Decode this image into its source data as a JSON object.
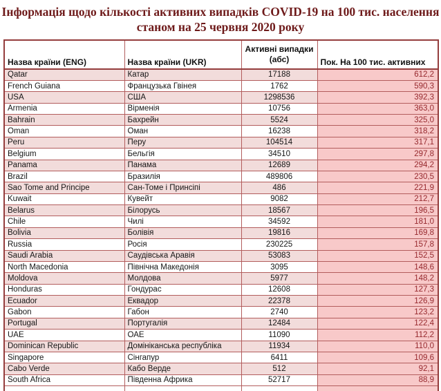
{
  "title": {
    "line1": "Інформація щодо кількості активних випадків COVID-19 на 100 тис.  населення",
    "line2": "станом на 25 червня 2020 року"
  },
  "colors": {
    "title_text": "#6e1a1a",
    "border": "#b25c5c",
    "outer_border": "#943c3c",
    "shaded_row_bg": "#f2dcdb",
    "rate_column_bg": "#f8c9c9",
    "rate_text": "#96282d"
  },
  "table": {
    "headers": [
      "Назва країни (ENG)",
      "Назва країни (UKR)",
      "Активні випадки\n(абс)",
      "Пок. На 100 тис. активних"
    ],
    "rows": [
      [
        "Qatar",
        "Катар",
        "17188",
        "612,2"
      ],
      [
        "French Guiana",
        "Французька Гвінея",
        "1762",
        "590,3"
      ],
      [
        "USA",
        "США",
        "1298536",
        "392,3"
      ],
      [
        "Armenia",
        "Вірменія",
        "10756",
        "363,0"
      ],
      [
        "Bahrain",
        "Бахрейн",
        "5524",
        "325,0"
      ],
      [
        "Oman",
        "Оман",
        "16238",
        "318,2"
      ],
      [
        "Peru",
        "Перу",
        "104514",
        "317,1"
      ],
      [
        "Belgium",
        "Бельгія",
        "34510",
        "297,8"
      ],
      [
        "Panama",
        "Панама",
        "12689",
        "294,2"
      ],
      [
        "Brazil",
        "Бразилія",
        "489806",
        "230,5"
      ],
      [
        "Sao Tome and Principe",
        "Сан-Томе і Принсіпі",
        "486",
        "221,9"
      ],
      [
        "Kuwait",
        "Кувейт",
        "9082",
        "212,7"
      ],
      [
        "Belarus",
        "Білорусь",
        "18567",
        "196,5"
      ],
      [
        "Chile",
        "Чилі",
        "34592",
        "181,0"
      ],
      [
        "Bolivia",
        "Болівія",
        "19816",
        "169,8"
      ],
      [
        "Russia",
        "Росія",
        "230225",
        "157,8"
      ],
      [
        "Saudi Arabia",
        "Саудівська Аравія",
        "53083",
        "152,5"
      ],
      [
        "North Macedonia",
        "Північна Македонія",
        "3095",
        "148,6"
      ],
      [
        "Moldova",
        "Молдова",
        "5977",
        "148,2"
      ],
      [
        "Honduras",
        "Гондурас",
        "12608",
        "127,3"
      ],
      [
        "Ecuador",
        "Еквадор",
        "22378",
        "126,9"
      ],
      [
        "Gabon",
        "Габон",
        "2740",
        "123,2"
      ],
      [
        "Portugal",
        "Португалія",
        "12484",
        "122,4"
      ],
      [
        "UAE",
        "ОАЕ",
        "11090",
        "112,2"
      ],
      [
        "Dominican Republic",
        "Домініканська республіка",
        "11934",
        "110,0"
      ],
      [
        "Singapore",
        "Сінгапур",
        "6411",
        "109,6"
      ],
      [
        "Cabo Verde",
        "Кабо Верде",
        "512",
        "92,1"
      ],
      [
        "South Africa",
        "Південна Африка",
        "52717",
        "88,9"
      ]
    ]
  }
}
